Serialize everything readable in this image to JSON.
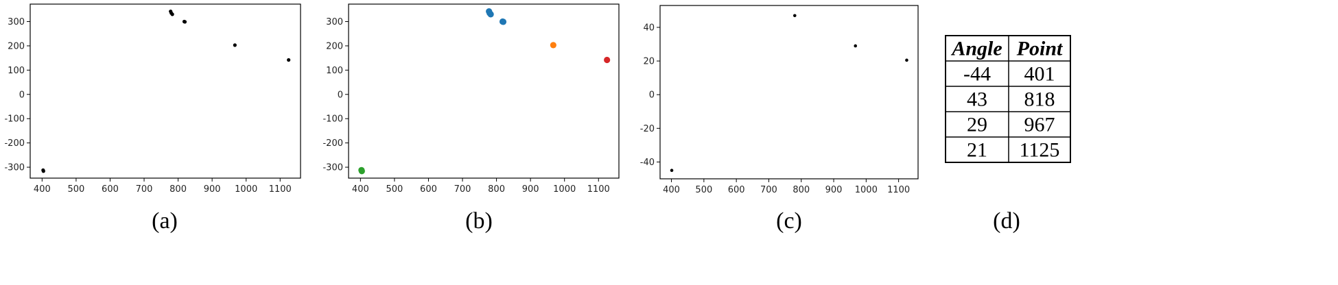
{
  "chart_data": [
    {
      "id": "a",
      "type": "scatter",
      "caption": "(a)",
      "xlim": [
        365,
        1160
      ],
      "ylim": [
        -345,
        372
      ],
      "xticks": [
        400,
        500,
        600,
        700,
        800,
        900,
        1000,
        1100
      ],
      "yticks": [
        300,
        200,
        100,
        0,
        -100,
        -200,
        -300
      ],
      "series": [
        {
          "color": "#000000",
          "points": [
            [
              778,
              342
            ],
            [
              780,
              335
            ],
            [
              783,
              330
            ],
            [
              818,
              300
            ],
            [
              820,
              299
            ],
            [
              967,
              203
            ],
            [
              1125,
              142
            ],
            [
              403,
              -312
            ],
            [
              404,
              -316
            ]
          ]
        }
      ]
    },
    {
      "id": "b",
      "type": "scatter",
      "caption": "(b)",
      "xlim": [
        365,
        1160
      ],
      "ylim": [
        -345,
        372
      ],
      "xticks": [
        400,
        500,
        600,
        700,
        800,
        900,
        1000,
        1100
      ],
      "yticks": [
        300,
        200,
        100,
        0,
        -100,
        -200,
        -300
      ],
      "series": [
        {
          "color": "#1f77b4",
          "points": [
            [
              778,
              342
            ],
            [
              780,
              335
            ],
            [
              783,
              330
            ],
            [
              818,
              300
            ],
            [
              820,
              299
            ]
          ]
        },
        {
          "color": "#ff7f0e",
          "points": [
            [
              967,
              203
            ]
          ]
        },
        {
          "color": "#d62728",
          "points": [
            [
              1125,
              142
            ]
          ]
        },
        {
          "color": "#2ca02c",
          "points": [
            [
              403,
              -312
            ],
            [
              404,
              -316
            ]
          ]
        }
      ]
    },
    {
      "id": "c",
      "type": "scatter",
      "caption": "(c)",
      "xlim": [
        365,
        1160
      ],
      "ylim": [
        -50,
        53
      ],
      "xticks": [
        400,
        500,
        600,
        700,
        800,
        900,
        1000,
        1100
      ],
      "yticks": [
        40,
        20,
        0,
        -20,
        -40
      ],
      "series": [
        {
          "color": "#000000",
          "points": [
            [
              780,
              47
            ],
            [
              967,
              29
            ],
            [
              1125,
              20.5
            ],
            [
              401,
              -45
            ]
          ]
        }
      ]
    },
    {
      "id": "d",
      "type": "table",
      "caption": "(d)",
      "columns": [
        "Angle",
        "Point"
      ],
      "rows": [
        [
          "-44",
          "401"
        ],
        [
          "43",
          "818"
        ],
        [
          "29",
          "967"
        ],
        [
          "21",
          "1125"
        ]
      ]
    }
  ]
}
